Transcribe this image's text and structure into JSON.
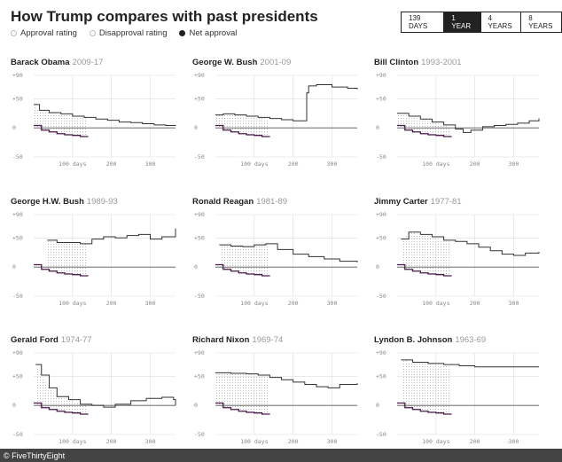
{
  "header": {
    "title": "How Trump compares with past presidents",
    "legend": {
      "approval": "Approval rating",
      "disapproval": "Disapproval rating",
      "net": "Net approval"
    },
    "tabs": [
      "139 DAYS",
      "1 YEAR",
      "4 YEARS",
      "8 YEARS"
    ],
    "active_tab": "1 YEAR"
  },
  "footer": {
    "credit": "© FiveThirtyEight"
  },
  "colors": {
    "trump": "#4a1a4a",
    "president": "#333333",
    "zero": "#555555",
    "grid": "#dddddd",
    "hatch": "#bbbbbb"
  },
  "chart_data": [
    {
      "type": "line",
      "president": "Barack Obama",
      "years": "2009-17",
      "ylim": [
        -50,
        90
      ],
      "xlim": [
        0,
        365
      ],
      "yticks": [
        "+90",
        "+50",
        "0",
        "-50"
      ],
      "xticks": [
        "100 days",
        "200",
        "300"
      ],
      "series": [
        {
          "name": "Net approval",
          "x": [
            0,
            15,
            40,
            70,
            100,
            130,
            160,
            190,
            220,
            250,
            280,
            310,
            340,
            365
          ],
          "y": [
            40,
            30,
            26,
            24,
            20,
            18,
            15,
            13,
            10,
            9,
            7,
            5,
            4,
            5
          ]
        },
        {
          "name": "Trump net approval",
          "x": [
            0,
            20,
            40,
            60,
            80,
            100,
            120,
            139
          ],
          "y": [
            4,
            -4,
            -7,
            -10,
            -12,
            -13,
            -15,
            -16
          ]
        }
      ]
    },
    {
      "type": "line",
      "president": "George W. Bush",
      "years": "2001-09",
      "ylim": [
        -50,
        90
      ],
      "xlim": [
        0,
        365
      ],
      "yticks": [
        "+90",
        "+50",
        "0",
        "-50"
      ],
      "xticks": [
        "100 days",
        "200",
        "300"
      ],
      "series": [
        {
          "name": "Net approval",
          "x": [
            0,
            20,
            50,
            80,
            110,
            140,
            170,
            200,
            225,
            235,
            240,
            260,
            300,
            340,
            365
          ],
          "y": [
            22,
            24,
            22,
            20,
            18,
            16,
            14,
            12,
            12,
            60,
            72,
            74,
            70,
            68,
            66
          ]
        },
        {
          "name": "Trump net approval",
          "x": [
            0,
            20,
            40,
            60,
            80,
            100,
            120,
            139
          ],
          "y": [
            4,
            -4,
            -7,
            -10,
            -12,
            -13,
            -15,
            -16
          ]
        }
      ]
    },
    {
      "type": "line",
      "president": "Bill Clinton",
      "years": "1993-2001",
      "ylim": [
        -50,
        90
      ],
      "xlim": [
        0,
        365
      ],
      "yticks": [
        "+90",
        "+50",
        "0",
        "-50"
      ],
      "xticks": [
        "100 days",
        "200",
        "300"
      ],
      "series": [
        {
          "name": "Net approval",
          "x": [
            0,
            30,
            60,
            90,
            120,
            150,
            170,
            190,
            220,
            250,
            280,
            310,
            340,
            365
          ],
          "y": [
            25,
            20,
            15,
            10,
            5,
            -2,
            -8,
            -4,
            2,
            4,
            6,
            8,
            12,
            16
          ]
        },
        {
          "name": "Trump net approval",
          "x": [
            0,
            20,
            40,
            60,
            80,
            100,
            120,
            139
          ],
          "y": [
            4,
            -4,
            -7,
            -10,
            -12,
            -13,
            -15,
            -16
          ]
        }
      ]
    },
    {
      "type": "line",
      "president": "George H.W. Bush",
      "years": "1989-93",
      "ylim": [
        -50,
        90
      ],
      "xlim": [
        0,
        365
      ],
      "yticks": [
        "+90",
        "+50",
        "0",
        "-50"
      ],
      "xticks": [
        "100 days",
        "200",
        "300"
      ],
      "series": [
        {
          "name": "Net approval",
          "x": [
            35,
            60,
            90,
            120,
            150,
            180,
            210,
            240,
            270,
            300,
            330,
            365
          ],
          "y": [
            46,
            42,
            42,
            40,
            48,
            52,
            50,
            54,
            56,
            48,
            52,
            66
          ]
        },
        {
          "name": "Trump net approval",
          "x": [
            0,
            20,
            40,
            60,
            80,
            100,
            120,
            139
          ],
          "y": [
            4,
            -4,
            -7,
            -10,
            -12,
            -13,
            -15,
            -16
          ]
        }
      ]
    },
    {
      "type": "line",
      "president": "Ronald Reagan",
      "years": "1981-89",
      "ylim": [
        -50,
        90
      ],
      "xlim": [
        0,
        365
      ],
      "yticks": [
        "+90",
        "+50",
        "0",
        "-50"
      ],
      "xticks": [
        "100 days",
        "200",
        "300"
      ],
      "series": [
        {
          "name": "Net approval",
          "x": [
            10,
            40,
            70,
            100,
            130,
            160,
            200,
            240,
            280,
            320,
            365
          ],
          "y": [
            38,
            36,
            35,
            38,
            40,
            30,
            22,
            18,
            14,
            10,
            8
          ]
        },
        {
          "name": "Trump net approval",
          "x": [
            0,
            20,
            40,
            60,
            80,
            100,
            120,
            139
          ],
          "y": [
            4,
            -4,
            -7,
            -10,
            -12,
            -13,
            -15,
            -16
          ]
        }
      ]
    },
    {
      "type": "line",
      "president": "Jimmy Carter",
      "years": "1977-81",
      "ylim": [
        -50,
        90
      ],
      "xlim": [
        0,
        365
      ],
      "yticks": [
        "+90",
        "+50",
        "0",
        "-50"
      ],
      "xticks": [
        "100 days",
        "200",
        "300"
      ],
      "series": [
        {
          "name": "Net approval",
          "x": [
            10,
            30,
            60,
            90,
            120,
            150,
            180,
            210,
            240,
            270,
            300,
            330,
            365
          ],
          "y": [
            48,
            60,
            56,
            52,
            46,
            44,
            40,
            34,
            28,
            22,
            20,
            24,
            26
          ]
        },
        {
          "name": "Trump net approval",
          "x": [
            0,
            20,
            40,
            60,
            80,
            100,
            120,
            139
          ],
          "y": [
            4,
            -4,
            -7,
            -10,
            -12,
            -13,
            -15,
            -16
          ]
        }
      ]
    },
    {
      "type": "line",
      "president": "Gerald Ford",
      "years": "1974-77",
      "ylim": [
        -50,
        90
      ],
      "xlim": [
        0,
        365
      ],
      "yticks": [
        "+90",
        "+50",
        "0",
        "-50"
      ],
      "xticks": [
        "100 days",
        "200",
        "300"
      ],
      "series": [
        {
          "name": "Net approval",
          "x": [
            5,
            20,
            40,
            60,
            90,
            120,
            150,
            180,
            210,
            250,
            290,
            330,
            360,
            365
          ],
          "y": [
            70,
            52,
            30,
            15,
            10,
            2,
            0,
            -3,
            2,
            8,
            12,
            14,
            10,
            0
          ]
        },
        {
          "name": "Trump net approval",
          "x": [
            0,
            20,
            40,
            60,
            80,
            100,
            120,
            139
          ],
          "y": [
            4,
            -4,
            -7,
            -10,
            -12,
            -13,
            -15,
            -16
          ]
        }
      ]
    },
    {
      "type": "line",
      "president": "Richard Nixon",
      "years": "1969-74",
      "ylim": [
        -50,
        90
      ],
      "xlim": [
        0,
        365
      ],
      "yticks": [
        "+90",
        "+50",
        "0",
        "-50"
      ],
      "xticks": [
        "100 days",
        "200",
        "300"
      ],
      "series": [
        {
          "name": "Net approval",
          "x": [
            0,
            40,
            80,
            110,
            140,
            170,
            200,
            230,
            260,
            290,
            320,
            365
          ],
          "y": [
            56,
            55,
            54,
            52,
            48,
            44,
            40,
            36,
            32,
            30,
            36,
            38
          ]
        },
        {
          "name": "Trump net approval",
          "x": [
            0,
            20,
            40,
            60,
            80,
            100,
            120,
            139
          ],
          "y": [
            4,
            -4,
            -7,
            -10,
            -12,
            -13,
            -15,
            -16
          ]
        }
      ]
    },
    {
      "type": "line",
      "president": "Lyndon B. Johnson",
      "years": "1963-69",
      "ylim": [
        -50,
        90
      ],
      "xlim": [
        0,
        365
      ],
      "yticks": [
        "+90",
        "+50",
        "0",
        "-50"
      ],
      "xticks": [
        "100 days",
        "200",
        "300"
      ],
      "series": [
        {
          "name": "Net approval",
          "x": [
            10,
            40,
            80,
            120,
            160,
            200,
            260,
            320,
            365
          ],
          "y": [
            78,
            74,
            72,
            70,
            68,
            66,
            66,
            66,
            66
          ]
        },
        {
          "name": "Trump net approval",
          "x": [
            0,
            20,
            40,
            60,
            80,
            100,
            120,
            139
          ],
          "y": [
            4,
            -4,
            -7,
            -10,
            -12,
            -13,
            -15,
            -16
          ]
        }
      ]
    }
  ]
}
